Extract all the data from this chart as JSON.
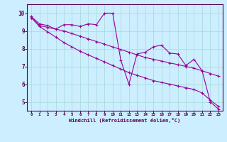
{
  "xlabel": "Windchill (Refroidissement éolien,°C)",
  "bg_color": "#cceeff",
  "line_color": "#990099",
  "grid_color": "#aadddd",
  "xlim": [
    -0.5,
    23.5
  ],
  "ylim": [
    4.5,
    10.5
  ],
  "xticks": [
    0,
    1,
    2,
    3,
    4,
    5,
    6,
    7,
    8,
    9,
    10,
    11,
    12,
    13,
    14,
    15,
    16,
    17,
    18,
    19,
    20,
    21,
    22,
    23
  ],
  "yticks": [
    5,
    6,
    7,
    8,
    9,
    10
  ],
  "s1_y": [
    9.8,
    9.4,
    9.3,
    9.1,
    9.35,
    9.35,
    9.25,
    9.4,
    9.35,
    10.0,
    10.0,
    7.35,
    6.0,
    7.7,
    7.8,
    8.1,
    8.2,
    7.75,
    7.7,
    7.05,
    7.4,
    6.75,
    5.0,
    4.6
  ],
  "s2_y": [
    9.75,
    9.3,
    9.2,
    9.1,
    9.0,
    8.85,
    8.7,
    8.55,
    8.4,
    8.25,
    8.1,
    7.95,
    7.8,
    7.65,
    7.5,
    7.4,
    7.3,
    7.2,
    7.1,
    7.0,
    6.9,
    6.75,
    6.6,
    6.45
  ],
  "s3_y": [
    9.75,
    9.25,
    8.95,
    8.65,
    8.35,
    8.1,
    7.85,
    7.65,
    7.45,
    7.25,
    7.05,
    6.85,
    6.65,
    6.5,
    6.35,
    6.2,
    6.1,
    6.0,
    5.9,
    5.8,
    5.7,
    5.5,
    5.1,
    4.75
  ]
}
